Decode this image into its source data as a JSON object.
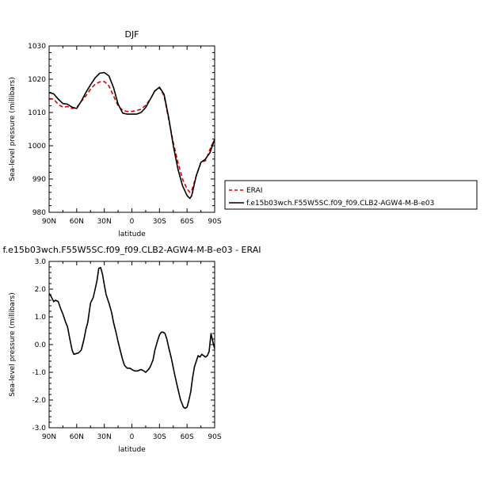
{
  "chart_data": [
    {
      "type": "line",
      "title": "DJF",
      "xlabel": "latitude",
      "ylabel": "Sea-level pressure (millibars)",
      "xlim": [
        90,
        -90
      ],
      "ylim": [
        980,
        1030
      ],
      "xticks": [
        90,
        60,
        30,
        0,
        -30,
        -60,
        -90
      ],
      "xtick_labels": [
        "90N",
        "60N",
        "30N",
        "0",
        "30S",
        "60S",
        "90S"
      ],
      "yticks": [
        980,
        990,
        1000,
        1010,
        1020,
        1030
      ],
      "ytick_labels": [
        "980",
        "990",
        "1000",
        "1010",
        "1020",
        "1030"
      ],
      "grid": false,
      "legend_position": "right-outside",
      "series": [
        {
          "name": "ERAI",
          "color": "#dd0000",
          "dash": "dashed",
          "x": [
            90,
            85,
            80,
            75,
            70,
            65,
            60,
            55,
            50,
            45,
            40,
            35,
            30,
            25,
            20,
            15,
            10,
            5,
            0,
            -5,
            -10,
            -15,
            -20,
            -25,
            -30,
            -35,
            -40,
            -45,
            -50,
            -55,
            -60,
            -63,
            -65,
            -70,
            -75,
            -80,
            -85,
            -90
          ],
          "values": [
            1014.2,
            1014.0,
            1012.4,
            1011.6,
            1011.8,
            1011.2,
            1011.5,
            1013.3,
            1015.0,
            1017.0,
            1018.5,
            1019.2,
            1019.3,
            1018.0,
            1015.0,
            1012.0,
            1010.6,
            1010.3,
            1010.3,
            1010.6,
            1011.0,
            1012.2,
            1014.0,
            1016.5,
            1017.5,
            1015.0,
            1008.0,
            1001.0,
            995.0,
            990.0,
            987.0,
            986.0,
            986.5,
            991.0,
            995.0,
            995.5,
            999.0,
            1002.0
          ]
        },
        {
          "name": "f.e15b03wch.F55W5SC.f09_f09.CLB2-AGW4-M-B-e03",
          "color": "#000000",
          "dash": "solid",
          "x": [
            90,
            85,
            80,
            75,
            70,
            65,
            60,
            55,
            50,
            45,
            40,
            35,
            30,
            25,
            20,
            15,
            10,
            5,
            0,
            -5,
            -10,
            -15,
            -20,
            -25,
            -30,
            -35,
            -40,
            -45,
            -50,
            -55,
            -60,
            -63,
            -65,
            -70,
            -75,
            -80,
            -85,
            -90
          ],
          "values": [
            1016.0,
            1015.6,
            1014.0,
            1012.7,
            1012.5,
            1011.6,
            1011.2,
            1013.4,
            1016.0,
            1018.3,
            1020.4,
            1021.8,
            1022.0,
            1021.0,
            1017.5,
            1012.5,
            1009.8,
            1009.5,
            1009.5,
            1009.5,
            1010.0,
            1011.5,
            1014.0,
            1016.5,
            1017.6,
            1015.5,
            1008.5,
            1000.0,
            993.0,
            988.0,
            985.0,
            984.2,
            985.0,
            991.0,
            995.0,
            996.0,
            998.0,
            1002.0
          ]
        }
      ]
    },
    {
      "type": "line",
      "title": "f.e15b03wch.F55W5SC.f09_f09.CLB2-AGW4-M-B-e03 - ERAI",
      "xlabel": "latitude",
      "ylabel": "Sea-level pressure (millibars)",
      "xlim": [
        90,
        -90
      ],
      "ylim": [
        -3.0,
        3.0
      ],
      "xticks": [
        90,
        60,
        30,
        0,
        -30,
        -60,
        -90
      ],
      "xtick_labels": [
        "90N",
        "60N",
        "30N",
        "0",
        "30S",
        "60S",
        "90S"
      ],
      "yticks": [
        -3.0,
        -2.0,
        -1.0,
        0.0,
        1.0,
        2.0,
        3.0
      ],
      "ytick_labels": [
        "-3.0",
        "-2.0",
        "-1.0",
        "0.0",
        "1.0",
        "2.0",
        "3.0"
      ],
      "grid": false,
      "series": [
        {
          "color": "#000000",
          "dash": "solid",
          "x": [
            90,
            88,
            85,
            83,
            80,
            78,
            75,
            72,
            70,
            68,
            65,
            63,
            60,
            58,
            55,
            52,
            50,
            48,
            45,
            42,
            40,
            38,
            36,
            34,
            32,
            30,
            28,
            25,
            22,
            20,
            17,
            15,
            12,
            10,
            8,
            5,
            2,
            0,
            -3,
            -6,
            -10,
            -13,
            -15,
            -18,
            -20,
            -23,
            -25,
            -28,
            -30,
            -32,
            -34,
            -36,
            -38,
            -40,
            -43,
            -46,
            -50,
            -53,
            -56,
            -58,
            -60,
            -62,
            -64,
            -66,
            -68,
            -70,
            -72,
            -74,
            -76,
            -78,
            -80,
            -82,
            -84,
            -86,
            -88,
            -90
          ],
          "values": [
            1.85,
            1.75,
            1.55,
            1.6,
            1.55,
            1.35,
            1.1,
            0.8,
            0.65,
            0.3,
            -0.2,
            -0.35,
            -0.32,
            -0.3,
            -0.2,
            0.2,
            0.55,
            0.8,
            1.5,
            1.7,
            2.0,
            2.3,
            2.75,
            2.78,
            2.55,
            2.15,
            1.8,
            1.5,
            1.15,
            0.8,
            0.4,
            0.1,
            -0.3,
            -0.55,
            -0.75,
            -0.85,
            -0.85,
            -0.9,
            -0.95,
            -0.95,
            -0.9,
            -0.95,
            -1.0,
            -0.9,
            -0.8,
            -0.55,
            -0.2,
            0.15,
            0.35,
            0.45,
            0.45,
            0.4,
            0.2,
            -0.1,
            -0.5,
            -1.0,
            -1.6,
            -2.0,
            -2.25,
            -2.3,
            -2.25,
            -2.0,
            -1.7,
            -1.2,
            -0.8,
            -0.6,
            -0.4,
            -0.45,
            -0.35,
            -0.4,
            -0.45,
            -0.4,
            -0.25,
            0.4,
            0.1,
            -0.15
          ]
        }
      ]
    }
  ]
}
